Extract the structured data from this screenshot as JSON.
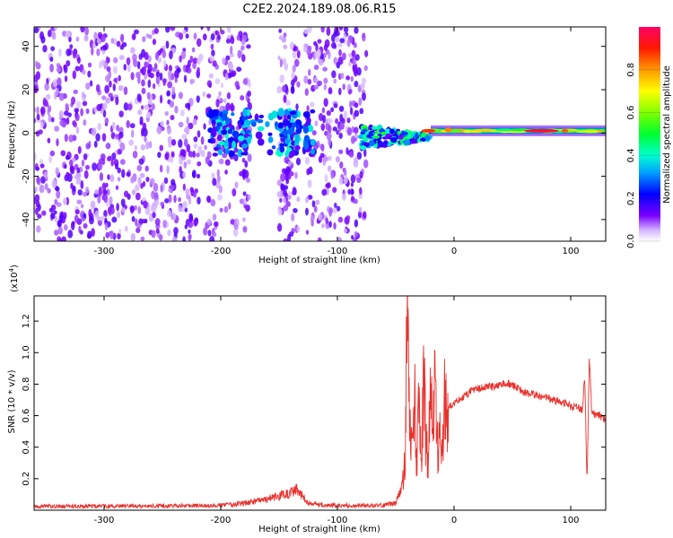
{
  "title": "C2E2.2024.189.08.06.R15",
  "colors": {
    "snr_line": "#e8322e",
    "scatter": "#6a00e6",
    "axis": "#000000"
  },
  "chart_data": [
    {
      "type": "heatmap",
      "xlabel": "Height of straight line (km)",
      "ylabel": "Frequency (Hz)",
      "xlim": [
        -360,
        130
      ],
      "ylim": [
        -50,
        49
      ],
      "x_ticks": [
        -300,
        -200,
        -100,
        0,
        100
      ],
      "y_ticks": [
        -40,
        -20,
        0,
        20,
        40
      ],
      "x_tick_labels": [
        "-300",
        "-200",
        "-100",
        "0",
        "100"
      ],
      "y_tick_labels": [
        "-40",
        "-20",
        "0",
        "20",
        "40"
      ],
      "colorbar": {
        "label": "Normalized spectral amplitude",
        "range": [
          0,
          1
        ],
        "ticks": [
          0,
          0.2,
          0.4,
          0.6,
          0.8
        ],
        "tick_labels": [
          "0.0",
          "0.2",
          "0.4",
          "0.6",
          "0.8"
        ],
        "colormap": "rainbow"
      },
      "features": [
        {
          "description": "broadband scattered low-amplitude returns",
          "x_range": [
            -360,
            -75
          ],
          "freq_range": [
            -50,
            49
          ],
          "amplitude": 0.12
        },
        {
          "description": "gap in returns",
          "x_range": [
            -175,
            -150
          ],
          "freq_range": [
            -50,
            49
          ],
          "amplitude": 0
        },
        {
          "description": "narrow gap in returns",
          "x_range": [
            -133,
            -128
          ],
          "freq_range": [
            -50,
            49
          ],
          "amplitude": 0
        },
        {
          "description": "concentrated band near zero frequency",
          "x_range": [
            -210,
            -120
          ],
          "freq_range": [
            -10,
            10
          ],
          "amplitude": 0.3
        },
        {
          "description": "converging band",
          "x_range": [
            -80,
            -20
          ],
          "freq_range": [
            -10,
            6
          ],
          "amplitude": 0.4
        },
        {
          "description": "narrow strong band at ~1 Hz",
          "x_range": [
            -20,
            130
          ],
          "freq_range": [
            -2,
            4
          ],
          "amplitude": 0.8
        },
        {
          "description": "peak amplitude",
          "x_range": [
            60,
            90
          ],
          "freq_range": [
            0,
            3
          ],
          "amplitude": 0.95
        }
      ]
    },
    {
      "type": "line",
      "xlabel": "Height of straight line (km)",
      "ylabel": "SNR (10 * v/v)",
      "y_multiplier_label": "(x10",
      "y_multiplier_exp": "4",
      "y_multiplier_close": ")",
      "xlim": [
        -360,
        130
      ],
      "ylim": [
        0,
        13600
      ],
      "x_ticks": [
        -300,
        -200,
        -100,
        0,
        100
      ],
      "y_ticks": [
        2000,
        4000,
        6000,
        8000,
        10000,
        12000
      ],
      "x_tick_labels": [
        "-300",
        "-200",
        "-100",
        "0",
        "100"
      ],
      "y_tick_labels": [
        "0.2",
        "0.4",
        "0.6",
        "0.8",
        "1.0",
        "1.2"
      ],
      "series": [
        {
          "x": [
            -360,
            -330,
            -300,
            -270,
            -240,
            -210,
            -190,
            -175,
            -160,
            -150,
            -140,
            -135,
            -130,
            -125,
            -115,
            -100,
            -80,
            -60,
            -50,
            -45,
            -42,
            -40,
            -38,
            -36,
            -34,
            -32,
            -30,
            -28,
            -26,
            -24,
            -22,
            -20,
            -18,
            -16,
            -14,
            -12,
            -10,
            -8,
            -6,
            -4,
            -2,
            0,
            5,
            10,
            15,
            20,
            25,
            30,
            35,
            40,
            45,
            50,
            55,
            60,
            65,
            70,
            75,
            80,
            85,
            90,
            95,
            100,
            105,
            110,
            112,
            114,
            116,
            118,
            120,
            125,
            130
          ],
          "y": [
            250,
            250,
            260,
            260,
            280,
            300,
            350,
            500,
            700,
            900,
            1100,
            1300,
            900,
            500,
            350,
            300,
            300,
            300,
            450,
            1400,
            3000,
            13500,
            5000,
            3500,
            7500,
            3000,
            6500,
            2500,
            9000,
            4000,
            3000,
            8500,
            5000,
            9000,
            3500,
            4500,
            3000,
            8000,
            6000,
            6500,
            6700,
            6800,
            7000,
            7300,
            7600,
            7700,
            7800,
            7900,
            7800,
            8000,
            8100,
            7900,
            7700,
            7500,
            7400,
            7300,
            7200,
            7100,
            7000,
            6900,
            6800,
            6600,
            6500,
            6400,
            8500,
            1800,
            9800,
            6200,
            6100,
            6000,
            5700
          ]
        }
      ]
    }
  ]
}
